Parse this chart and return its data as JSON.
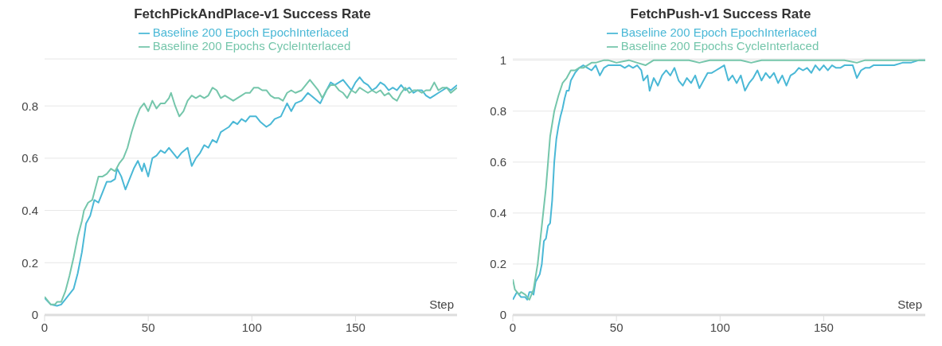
{
  "chart_data": [
    {
      "type": "line",
      "title": "FetchPickAndPlace-v1 Success Rate",
      "xlabel": "Step",
      "xlim": [
        0,
        199
      ],
      "xticks": [
        0,
        50,
        100,
        150
      ],
      "ylim": [
        0,
        0.98
      ],
      "yticks": [
        0,
        0.2,
        0.4,
        0.6,
        0.8
      ],
      "grid": "y",
      "legend": "top",
      "marker": "none",
      "line_style": "solid",
      "series": [
        {
          "name": "Baseline 200 Epoch EpochInterlaced",
          "color": "#4ab8d6",
          "x": [
            0,
            3,
            6,
            8,
            10,
            14,
            16,
            18,
            20,
            22,
            24,
            26,
            28,
            30,
            32,
            34,
            35,
            37,
            39,
            41,
            43,
            45,
            47,
            48,
            50,
            52,
            54,
            56,
            58,
            60,
            62,
            64,
            66,
            69,
            71,
            73,
            75,
            77,
            79,
            81,
            83,
            85,
            87,
            89,
            91,
            93,
            95,
            97,
            99,
            102,
            104,
            107,
            109,
            111,
            114,
            117,
            119,
            121,
            124,
            127,
            130,
            133,
            136,
            138,
            140,
            142,
            144,
            146,
            148,
            150,
            152,
            154,
            156,
            158,
            160,
            162,
            164,
            166,
            168,
            170,
            172,
            174,
            176,
            178,
            180,
            182,
            184,
            186,
            188,
            190,
            192,
            194,
            196,
            199
          ],
          "values": [
            0.065,
            0.04,
            0.035,
            0.04,
            0.06,
            0.1,
            0.16,
            0.24,
            0.35,
            0.38,
            0.44,
            0.43,
            0.47,
            0.51,
            0.51,
            0.52,
            0.56,
            0.53,
            0.48,
            0.52,
            0.56,
            0.59,
            0.55,
            0.58,
            0.53,
            0.6,
            0.61,
            0.63,
            0.62,
            0.64,
            0.62,
            0.6,
            0.62,
            0.64,
            0.57,
            0.6,
            0.62,
            0.65,
            0.64,
            0.67,
            0.66,
            0.7,
            0.71,
            0.72,
            0.74,
            0.73,
            0.75,
            0.74,
            0.76,
            0.76,
            0.74,
            0.72,
            0.73,
            0.75,
            0.76,
            0.81,
            0.78,
            0.81,
            0.82,
            0.85,
            0.83,
            0.81,
            0.86,
            0.89,
            0.88,
            0.89,
            0.9,
            0.88,
            0.86,
            0.89,
            0.91,
            0.89,
            0.88,
            0.86,
            0.87,
            0.89,
            0.88,
            0.86,
            0.87,
            0.86,
            0.88,
            0.86,
            0.87,
            0.85,
            0.86,
            0.86,
            0.84,
            0.83,
            0.84,
            0.85,
            0.86,
            0.87,
            0.86,
            0.88
          ]
        },
        {
          "name": "Baseline 200 Epochs CycleInterlaced",
          "color": "#75c6ab",
          "x": [
            0,
            3,
            5,
            6,
            8,
            10,
            12,
            14,
            16,
            18,
            19,
            21,
            23,
            25,
            26,
            28,
            30,
            32,
            34,
            36,
            38,
            40,
            42,
            44,
            46,
            48,
            50,
            52,
            54,
            56,
            58,
            60,
            61,
            63,
            65,
            67,
            69,
            71,
            73,
            75,
            77,
            79,
            81,
            83,
            85,
            87,
            89,
            91,
            93,
            95,
            97,
            99,
            101,
            103,
            105,
            107,
            109,
            111,
            113,
            115,
            117,
            119,
            121,
            124,
            126,
            128,
            130,
            132,
            134,
            136,
            138,
            140,
            142,
            144,
            146,
            148,
            150,
            152,
            154,
            156,
            158,
            160,
            162,
            164,
            166,
            168,
            170,
            172,
            174,
            176,
            178,
            180,
            182,
            184,
            186,
            188,
            190,
            192,
            194,
            196,
            199
          ],
          "values": [
            0.07,
            0.04,
            0.04,
            0.05,
            0.05,
            0.09,
            0.15,
            0.22,
            0.3,
            0.36,
            0.4,
            0.43,
            0.44,
            0.5,
            0.53,
            0.53,
            0.54,
            0.56,
            0.55,
            0.58,
            0.6,
            0.64,
            0.7,
            0.75,
            0.79,
            0.81,
            0.78,
            0.82,
            0.79,
            0.81,
            0.81,
            0.83,
            0.85,
            0.8,
            0.76,
            0.78,
            0.82,
            0.84,
            0.83,
            0.84,
            0.83,
            0.84,
            0.87,
            0.86,
            0.83,
            0.84,
            0.83,
            0.82,
            0.83,
            0.84,
            0.85,
            0.85,
            0.87,
            0.87,
            0.86,
            0.86,
            0.84,
            0.83,
            0.83,
            0.82,
            0.85,
            0.86,
            0.85,
            0.86,
            0.88,
            0.9,
            0.88,
            0.86,
            0.83,
            0.86,
            0.88,
            0.88,
            0.86,
            0.85,
            0.83,
            0.86,
            0.85,
            0.87,
            0.86,
            0.85,
            0.86,
            0.85,
            0.86,
            0.84,
            0.85,
            0.83,
            0.82,
            0.85,
            0.87,
            0.85,
            0.86,
            0.86,
            0.85,
            0.86,
            0.86,
            0.89,
            0.86,
            0.87,
            0.87,
            0.85,
            0.87
          ]
        }
      ]
    },
    {
      "type": "line",
      "title": "FetchPush-v1 Success Rate",
      "xlabel": "Step",
      "xlim": [
        0,
        199
      ],
      "xticks": [
        0,
        50,
        100,
        150
      ],
      "ylim": [
        0,
        1.005
      ],
      "yticks": [
        0,
        0.2,
        0.4,
        0.6,
        0.8,
        1
      ],
      "grid": "y",
      "legend": "top",
      "marker": "none",
      "line_style": "solid",
      "series": [
        {
          "name": "Baseline 200 Epoch EpochInterlaced",
          "color": "#4ab8d6",
          "x": [
            0,
            2,
            4,
            6,
            7,
            8,
            9,
            10,
            11,
            13,
            14,
            15,
            16,
            17,
            18,
            19,
            20,
            21,
            22,
            23,
            24,
            25,
            26,
            27,
            28,
            30,
            32,
            34,
            36,
            38,
            40,
            42,
            44,
            46,
            48,
            50,
            52,
            54,
            56,
            58,
            60,
            62,
            63,
            65,
            66,
            68,
            70,
            72,
            74,
            76,
            78,
            80,
            82,
            84,
            86,
            88,
            90,
            92,
            94,
            96,
            98,
            100,
            102,
            104,
            106,
            108,
            110,
            112,
            114,
            116,
            118,
            120,
            122,
            124,
            126,
            128,
            130,
            132,
            134,
            136,
            138,
            140,
            142,
            144,
            146,
            148,
            150,
            152,
            154,
            156,
            158,
            160,
            162,
            164,
            166,
            168,
            170,
            172,
            174,
            176,
            180,
            184,
            188,
            192,
            196,
            199
          ],
          "values": [
            0.06,
            0.09,
            0.07,
            0.07,
            0.06,
            0.09,
            0.09,
            0.08,
            0.13,
            0.16,
            0.2,
            0.29,
            0.3,
            0.35,
            0.36,
            0.45,
            0.6,
            0.69,
            0.74,
            0.78,
            0.81,
            0.85,
            0.88,
            0.88,
            0.92,
            0.95,
            0.97,
            0.98,
            0.97,
            0.96,
            0.98,
            0.94,
            0.97,
            0.98,
            0.98,
            0.98,
            0.98,
            0.97,
            0.98,
            0.97,
            0.98,
            0.96,
            0.92,
            0.94,
            0.88,
            0.93,
            0.9,
            0.94,
            0.96,
            0.94,
            0.97,
            0.92,
            0.9,
            0.93,
            0.91,
            0.94,
            0.89,
            0.92,
            0.95,
            0.95,
            0.96,
            0.97,
            0.98,
            0.92,
            0.94,
            0.91,
            0.94,
            0.88,
            0.91,
            0.93,
            0.96,
            0.92,
            0.95,
            0.93,
            0.95,
            0.91,
            0.94,
            0.9,
            0.94,
            0.95,
            0.97,
            0.96,
            0.97,
            0.95,
            0.98,
            0.96,
            0.98,
            0.96,
            0.98,
            0.97,
            0.97,
            0.98,
            0.98,
            0.98,
            0.93,
            0.96,
            0.97,
            0.97,
            0.98,
            0.98,
            0.98,
            0.98,
            0.99,
            0.99,
            1,
            1
          ]
        },
        {
          "name": "Baseline 200 Epochs CycleInterlaced",
          "color": "#75c6ab",
          "x": [
            0,
            1,
            3,
            4,
            6,
            8,
            10,
            12,
            14,
            16,
            17,
            18,
            20,
            22,
            24,
            26,
            28,
            30,
            32,
            34,
            36,
            38,
            40,
            44,
            46,
            50,
            56,
            60,
            64,
            68,
            75,
            80,
            85,
            90,
            95,
            100,
            110,
            115,
            120,
            130,
            140,
            150,
            160,
            166,
            170,
            180,
            190,
            199
          ],
          "values": [
            0.14,
            0.1,
            0.08,
            0.09,
            0.08,
            0.06,
            0.1,
            0.2,
            0.35,
            0.5,
            0.6,
            0.7,
            0.8,
            0.86,
            0.91,
            0.93,
            0.96,
            0.96,
            0.97,
            0.97,
            0.98,
            0.99,
            0.99,
            1,
            1,
            0.99,
            1,
            0.99,
            0.98,
            1,
            1,
            1,
            1,
            0.99,
            1,
            1,
            1,
            0.99,
            1,
            1,
            1,
            1,
            1,
            0.99,
            1,
            1,
            1,
            1
          ]
        }
      ]
    }
  ]
}
